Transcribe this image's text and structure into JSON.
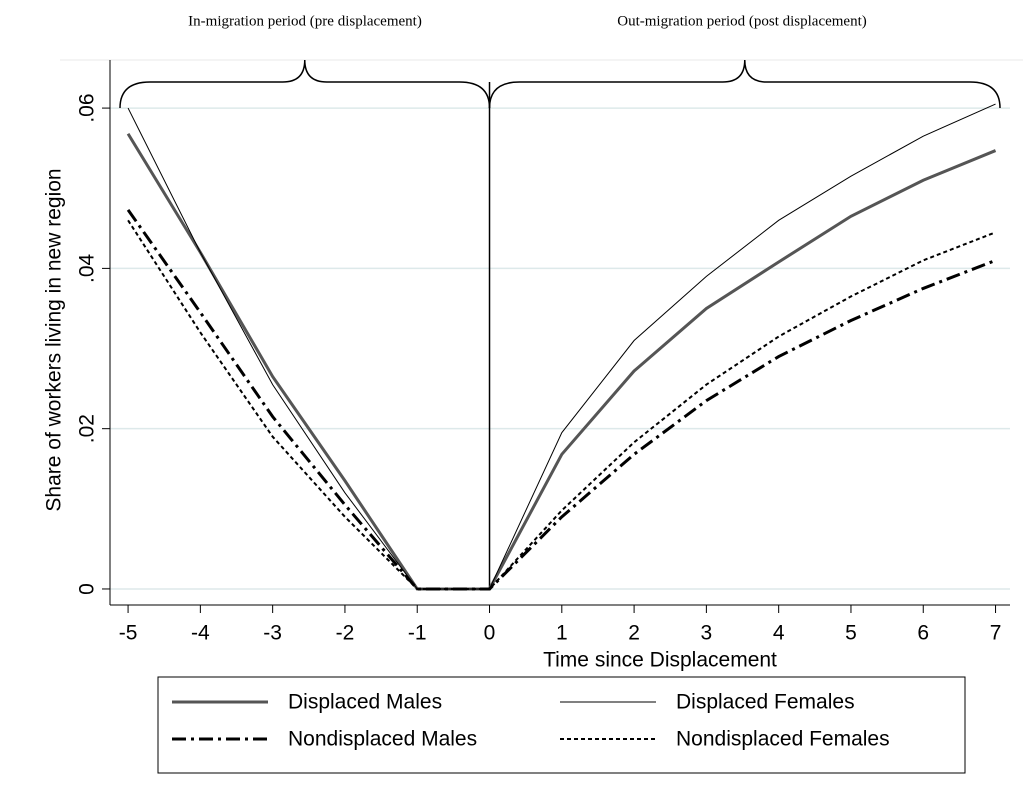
{
  "chart_data": {
    "type": "line",
    "annotations": [
      "In-migration period (pre displacement)",
      "Out-migration period (post displacement)"
    ],
    "x_label": "Time since Displacement",
    "y_label": "Share of workers living in new region",
    "x": [
      -5,
      -4,
      -3,
      -2,
      -1,
      0,
      1,
      2,
      3,
      4,
      5,
      6,
      7
    ],
    "series": [
      {
        "name": "Displaced Males",
        "color": "#555555",
        "style": "solid-thick",
        "values": [
          0.0568,
          0.042,
          0.0265,
          0.0135,
          0,
          0,
          0.0168,
          0.0272,
          0.035,
          0.0408,
          0.0465,
          0.051,
          0.0547
        ]
      },
      {
        "name": "Displaced Females",
        "color": "#000000",
        "style": "solid-thin",
        "values": [
          0.06,
          0.042,
          0.0255,
          0.012,
          0,
          0,
          0.0195,
          0.031,
          0.039,
          0.046,
          0.0515,
          0.0565,
          0.0605
        ]
      },
      {
        "name": "Nondisplaced Males",
        "color": "#000000",
        "style": "dash-dot",
        "values": [
          0.0473,
          0.0345,
          0.0215,
          0.0105,
          0,
          0,
          0.009,
          0.0168,
          0.0235,
          0.029,
          0.0335,
          0.0375,
          0.041
        ]
      },
      {
        "name": "Nondisplaced Females",
        "color": "#000000",
        "style": "short-dash",
        "values": [
          0.046,
          0.032,
          0.019,
          0.009,
          0,
          0,
          0.0098,
          0.0183,
          0.0255,
          0.0315,
          0.0365,
          0.041,
          0.0445
        ]
      }
    ],
    "xlim": [
      -5.25,
      7.2
    ],
    "xticks": [
      -5,
      -4,
      -3,
      -2,
      -1,
      0,
      1,
      2,
      3,
      4,
      5,
      6,
      7
    ],
    "ylim": [
      -0.002,
      0.066
    ],
    "yticks": [
      0,
      {
        "value": 0.02,
        "label": ".02"
      },
      {
        "value": 0.04,
        "label": ".04"
      },
      {
        "value": 0.06,
        "label": ".06"
      }
    ],
    "grid": true,
    "legend": "bottom"
  }
}
